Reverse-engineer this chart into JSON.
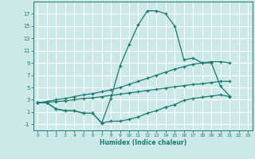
{
  "xlabel": "Humidex (Indice chaleur)",
  "bg_color": "#cce8e8",
  "grid_color": "#ffffff",
  "line_color": "#1a7a6e",
  "line1_y": [
    2.5,
    2.5,
    1.5,
    1.2,
    1.2,
    0.8,
    0.8,
    -0.8,
    3.2,
    8.5,
    12.0,
    15.2,
    17.5,
    17.5,
    17.0,
    15.0,
    9.5,
    9.8,
    9.0,
    9.0,
    5.2,
    3.6
  ],
  "line2_y": [
    2.5,
    2.7,
    3.0,
    3.2,
    3.5,
    3.8,
    4.0,
    4.3,
    4.6,
    5.0,
    5.5,
    6.0,
    6.5,
    7.0,
    7.5,
    8.0,
    8.4,
    8.8,
    9.0,
    9.2,
    9.2,
    9.0
  ],
  "line3_y": [
    2.5,
    2.6,
    2.7,
    2.8,
    3.0,
    3.2,
    3.3,
    3.5,
    3.7,
    3.9,
    4.1,
    4.3,
    4.5,
    4.7,
    4.9,
    5.1,
    5.3,
    5.5,
    5.6,
    5.8,
    6.0,
    6.0
  ],
  "line4_y": [
    2.5,
    2.5,
    1.5,
    1.2,
    1.2,
    0.8,
    0.8,
    -0.8,
    -0.5,
    -0.5,
    -0.2,
    0.2,
    0.8,
    1.2,
    1.8,
    2.2,
    2.9,
    3.2,
    3.4,
    3.6,
    3.8,
    3.5
  ],
  "x": [
    0,
    1,
    2,
    3,
    4,
    5,
    6,
    7,
    8,
    9,
    10,
    11,
    12,
    13,
    14,
    15,
    16,
    17,
    18,
    19,
    20,
    21
  ],
  "xlim": [
    -0.5,
    23.5
  ],
  "ylim": [
    -2,
    19
  ],
  "yticks": [
    -1,
    1,
    3,
    5,
    7,
    9,
    11,
    13,
    15,
    17
  ],
  "xticks": [
    0,
    1,
    2,
    3,
    4,
    5,
    6,
    7,
    8,
    9,
    10,
    11,
    12,
    13,
    14,
    15,
    16,
    17,
    18,
    19,
    20,
    21,
    22,
    23
  ]
}
